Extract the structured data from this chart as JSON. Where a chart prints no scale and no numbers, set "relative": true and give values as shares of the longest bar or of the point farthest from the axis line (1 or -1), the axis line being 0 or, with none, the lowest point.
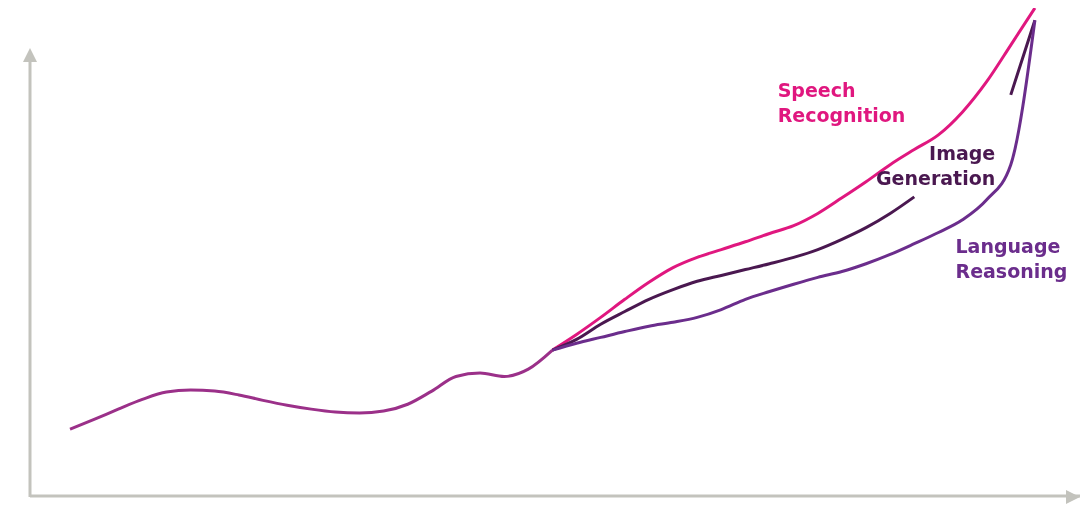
{
  "chart_data": {
    "type": "line",
    "relative": true,
    "categories": [
      null,
      null,
      null,
      null,
      null,
      null,
      null,
      null,
      null,
      null,
      null,
      null,
      null,
      null,
      null,
      null,
      null,
      null,
      null,
      null,
      null,
      null,
      null,
      null,
      null,
      null,
      null,
      null,
      null,
      null,
      null,
      null,
      null,
      null,
      null,
      null,
      null,
      null,
      null,
      null,
      null
    ],
    "series": [
      {
        "color": "#9b3089",
        "values": [
          0.137,
          0.157,
          0.178,
          0.198,
          0.213,
          0.217,
          0.215,
          0.207,
          0.196,
          0.186,
          0.178,
          0.172,
          0.17,
          0.174,
          0.188,
          0.215,
          0.245,
          0.252,
          0.245,
          0.26,
          0.299,
          null,
          null,
          null,
          null,
          null,
          null,
          null,
          null,
          null,
          null,
          null,
          null,
          null,
          null,
          null,
          null,
          null,
          null,
          null,
          null
        ]
      },
      {
        "name": "Speech Recognition",
        "color": "#e0177f",
        "values": [
          null,
          null,
          null,
          null,
          null,
          null,
          null,
          null,
          null,
          null,
          null,
          null,
          null,
          null,
          null,
          null,
          null,
          null,
          null,
          null,
          0.299,
          0.331,
          0.366,
          0.403,
          0.438,
          0.468,
          0.489,
          0.505,
          0.521,
          0.538,
          0.554,
          0.579,
          0.611,
          0.644,
          0.679,
          0.71,
          0.74,
          0.787,
          0.849,
          0.924,
          1
        ]
      },
      {
        "name": "Image Generation",
        "color": "#4a1850",
        "values": [
          null,
          null,
          null,
          null,
          null,
          null,
          null,
          null,
          null,
          null,
          null,
          null,
          null,
          null,
          null,
          null,
          null,
          null,
          null,
          null,
          0.299,
          0.321,
          0.352,
          0.378,
          0.403,
          0.423,
          0.44,
          0.452,
          0.464,
          0.476,
          0.489,
          0.505,
          0.526,
          0.55,
          0.579,
          0.613,
          null,
          null,
          null,
          0.822,
          0.975
        ]
      },
      {
        "name": "Language Reasoning",
        "color": "#6b2d8c",
        "values": [
          null,
          null,
          null,
          null,
          null,
          null,
          null,
          null,
          null,
          null,
          null,
          null,
          null,
          null,
          null,
          null,
          null,
          null,
          null,
          null,
          0.299,
          0.313,
          0.325,
          0.337,
          0.348,
          0.356,
          0.366,
          0.382,
          0.403,
          0.419,
          0.434,
          0.448,
          0.46,
          0.476,
          0.495,
          0.517,
          0.54,
          0.566,
          0.607,
          0.679,
          0.975
        ]
      }
    ],
    "grid": false,
    "legend": false,
    "marker": "none",
    "line_style": "solid"
  }
}
